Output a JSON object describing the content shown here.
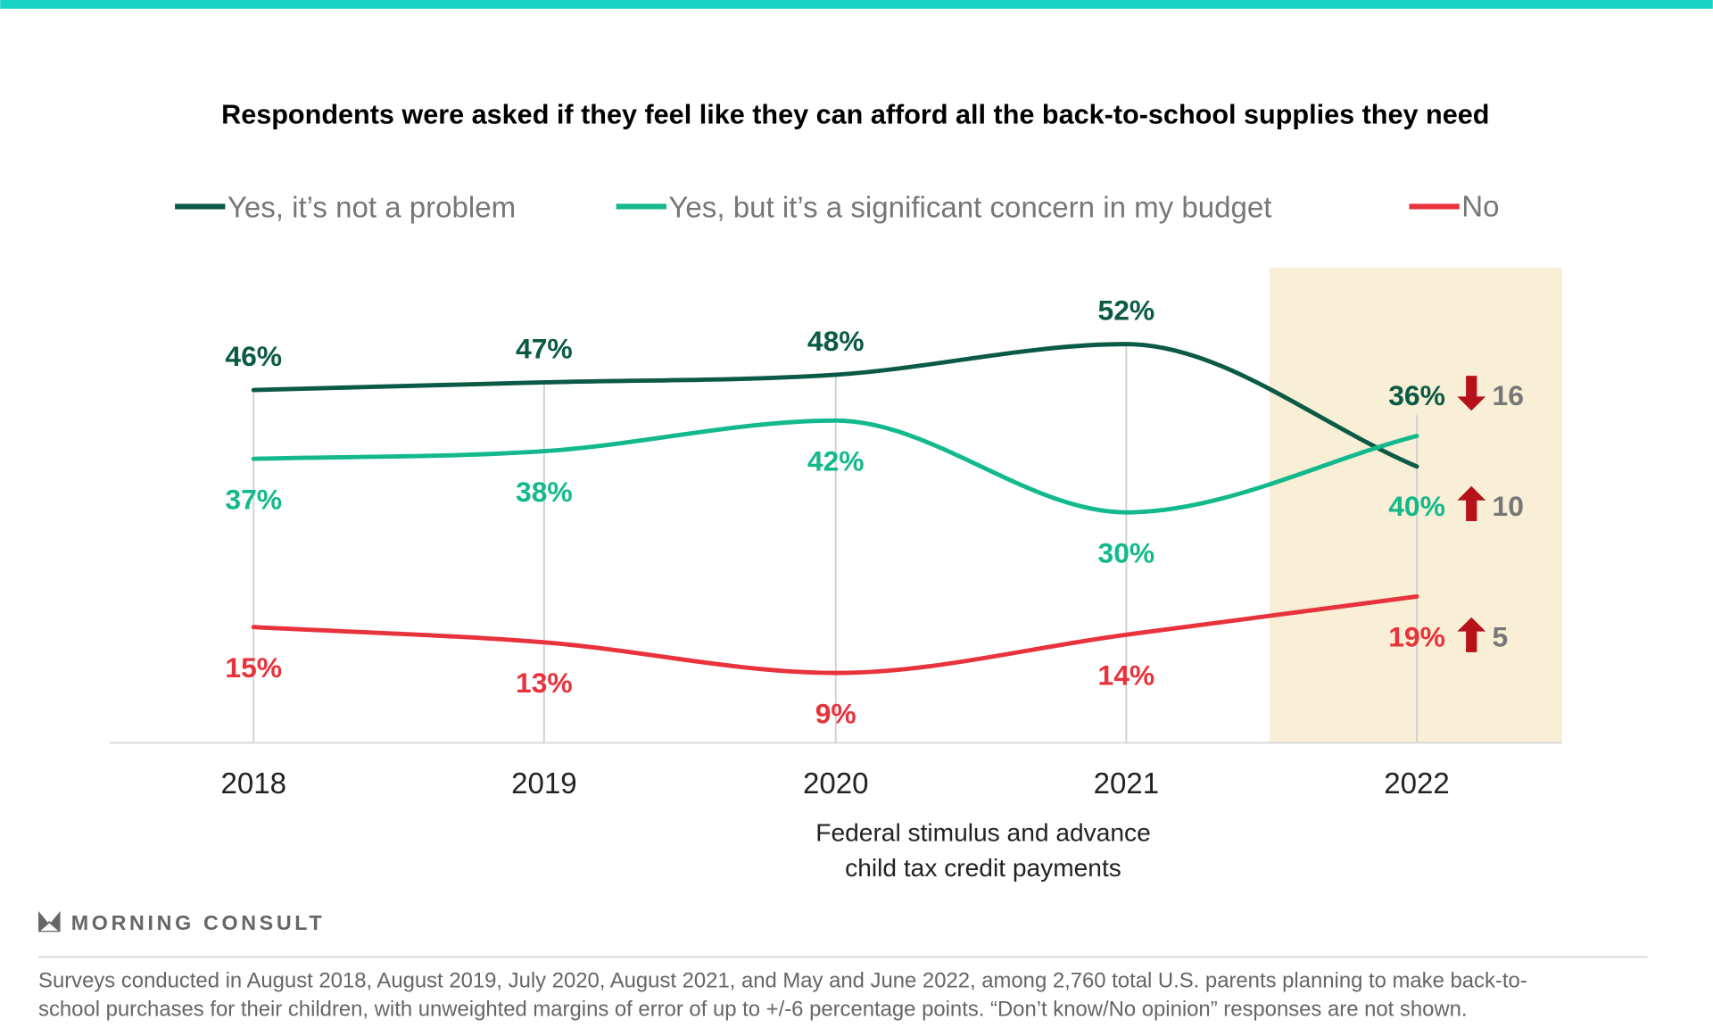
{
  "colors": {
    "top_bar": "#19d3c5",
    "highlight": "#f8efd6",
    "arrow": "#b5121b",
    "change_text": "#777777"
  },
  "chart_data": {
    "type": "line",
    "title": "Respondents were asked if they feel like they can afford all the back-to-school supplies they need",
    "categories": [
      "2018",
      "2019",
      "2020",
      "2021",
      "2022"
    ],
    "ylim": [
      0,
      100
    ],
    "grid": "vertical lines at each year",
    "legend_placement": "top",
    "highlighted_category": "2022",
    "series": [
      {
        "name": "Yes, it’s not a problem",
        "color": "#0b5a45",
        "values": [
          46,
          47,
          48,
          52,
          36
        ],
        "labels": [
          "46%",
          "47%",
          "48%",
          "52%",
          "36%"
        ],
        "label_position": "above",
        "change_2022": {
          "direction": "down",
          "value": "16"
        }
      },
      {
        "name": "Yes, but it’s a significant concern in my budget",
        "color": "#13b98c",
        "values": [
          37,
          38,
          42,
          30,
          40
        ],
        "labels": [
          "37%",
          "38%",
          "42%",
          "30%",
          "40%"
        ],
        "label_position": "below",
        "change_2022": {
          "direction": "up",
          "value": "10"
        }
      },
      {
        "name": "No",
        "color": "#e8323c",
        "values": [
          15,
          13,
          9,
          14,
          19
        ],
        "labels": [
          "15%",
          "13%",
          "9%",
          "14%",
          "19%"
        ],
        "label_position": "below",
        "change_2022": {
          "direction": "up",
          "value": "5"
        }
      }
    ],
    "annotation": [
      "Federal stimulus and advance",
      "child tax credit payments"
    ]
  },
  "brand": "MORNING CONSULT",
  "footnote": [
    "Surveys conducted in August 2018, August 2019, July 2020, August 2021, and May and June 2022, among 2,760 total U.S. parents planning to make back-to-",
    "school purchases for their children, with unweighted margins of error of up to +/-6 percentage points. “Don’t know/No opinion” responses are not shown."
  ]
}
